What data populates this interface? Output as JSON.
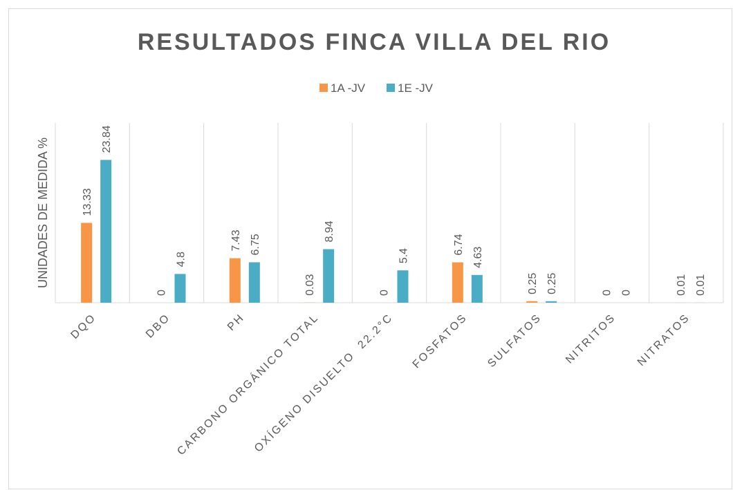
{
  "chart_data": {
    "type": "bar",
    "title": "RESULTADOS FINCA VILLA DEL RIO",
    "y_label": "UNIDADES DE MEDIDA %",
    "categories": [
      "DQO",
      "DBO",
      "PH",
      "CARBONO ORGÁNICO TOTAL",
      "OXÍGENO DISUELTO  22.2°C",
      "FOSFATOS",
      "SULFATOS",
      "NITRITOS",
      "NITRATOS"
    ],
    "series": [
      {
        "name": "1A -JV",
        "color": "#f79646",
        "values": [
          13.33,
          0,
          7.43,
          0.03,
          0,
          6.74,
          0.25,
          0,
          0.01
        ]
      },
      {
        "name": "1E -JV",
        "color": "#4bacc6",
        "values": [
          23.84,
          4.8,
          6.75,
          8.94,
          5.4,
          4.63,
          0.25,
          0,
          0.01
        ]
      }
    ],
    "ylim": [
      0,
      30
    ],
    "legend": "top",
    "grid": true
  }
}
